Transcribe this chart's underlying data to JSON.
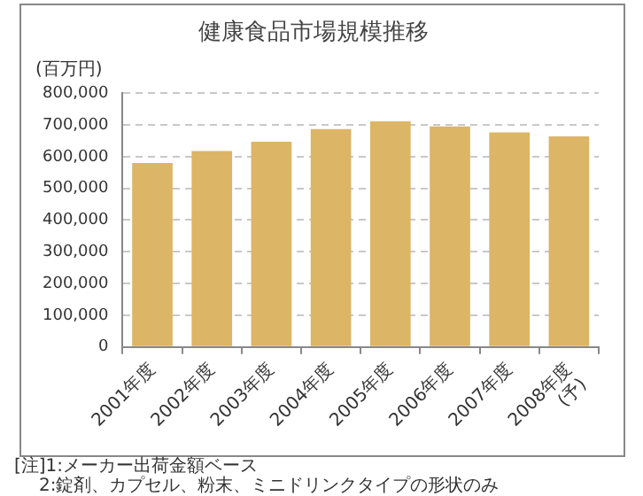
{
  "chart_data": {
    "type": "bar",
    "title": "健康食品市場規模推移",
    "ylabel": "(百万円)",
    "categories": [
      "2001年度",
      "2002年度",
      "2003年度",
      "2004年度",
      "2005年度",
      "2006年度",
      "2007年度",
      "2008年度\n(予)"
    ],
    "values": [
      580000,
      618000,
      647000,
      687000,
      711000,
      695000,
      676000,
      664000
    ],
    "color": "#dcb566",
    "ylim": [
      0,
      800000
    ],
    "yticks": [
      0,
      {
        "value": 100000,
        "label": "100,000"
      },
      {
        "value": 200000,
        "label": "200,000"
      },
      {
        "value": 300000,
        "label": "300,000"
      },
      {
        "value": 400000,
        "label": "400,000"
      },
      {
        "value": 500000,
        "label": "500,000"
      },
      {
        "value": 600000,
        "label": "600,000"
      },
      {
        "value": 700000,
        "label": "700,000"
      },
      {
        "value": 800000,
        "label": "800,000"
      }
    ],
    "grid": "y",
    "line_style": "dashed",
    "annotations": [
      "[注]1:メーカー出荷金額ベース",
      "2:錠剤、カプセル、粉末、ミニドリンクタイプの形状のみ"
    ]
  }
}
